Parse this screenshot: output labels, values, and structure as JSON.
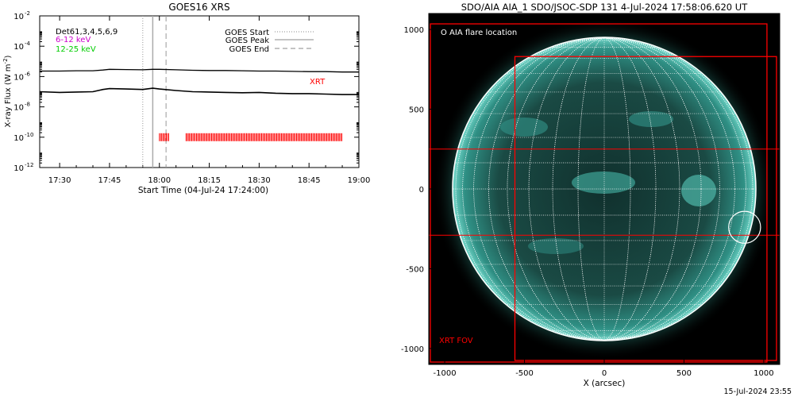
{
  "left_panel": {
    "title": "GOES16 XRS",
    "ylabel": "X-ray Flux (W m",
    "ylabel_sup": "-2",
    "ylabel_end": ")",
    "xlabel": "Start Time (04-Jul-24 17:24:00)",
    "detectors_label": "Det61,3,4,5,6,9",
    "band_low": "6-12 keV",
    "band_high": "12-25 keV",
    "legend": {
      "start": "GOES Start",
      "peak": "GOES Peak",
      "end": "GOES End"
    },
    "xrt_label": "XRT",
    "colors": {
      "band_low": "#cc00cc",
      "band_high": "#00cc00",
      "xrt": "#ff0000"
    }
  },
  "right_panel": {
    "title": "SDO/AIA AIA_1 SDO/JSOC-SDP 131  4-Jul-2024 17:58:06.620 UT",
    "flare_legend": "O AIA flare location",
    "fov_label": "XRT FOV",
    "xlabel": "X (arcsec)",
    "colors": {
      "fov": "#ff0000",
      "disk": "#2a9a8e"
    }
  },
  "footer_timestamp": "15-Jul-2024 23:55",
  "chart_data": [
    {
      "type": "line",
      "title": "GOES16 XRS",
      "xlabel": "Start Time (04-Jul-24 17:24:00)",
      "ylabel": "X-ray Flux (W m^-2)",
      "y_scale": "log",
      "x_ticks": [
        "17:30",
        "17:45",
        "18:00",
        "18:15",
        "18:30",
        "18:45",
        "19:00"
      ],
      "y_tick_exponents": [
        -12,
        -10,
        -8,
        -6,
        -4,
        -2
      ],
      "ylim": [
        1e-12,
        0.01
      ],
      "xlim": [
        "17:24",
        "19:00"
      ],
      "vertical_markers": {
        "goes_start": "17:55",
        "goes_peak": "17:58",
        "goes_end": "18:02"
      },
      "series": [
        {
          "name": "6-12 keV",
          "x": [
            "17:24",
            "17:30",
            "17:35",
            "17:40",
            "17:43",
            "17:45",
            "17:50",
            "17:55",
            "17:58",
            "18:00",
            "18:05",
            "18:10",
            "18:15",
            "18:20",
            "18:25",
            "18:30",
            "18:35",
            "18:40",
            "18:45",
            "18:50",
            "18:55",
            "19:00"
          ],
          "y": [
            2.3e-06,
            2.3e-06,
            2.4e-06,
            2.4e-06,
            2.7e-06,
            3e-06,
            2.9e-06,
            2.8e-06,
            3e-06,
            3e-06,
            2.8e-06,
            2.6e-06,
            2.5e-06,
            2.5e-06,
            2.4e-06,
            2.3e-06,
            2.3e-06,
            2.2e-06,
            2.1e-06,
            2.1e-06,
            2e-06,
            2e-06
          ]
        },
        {
          "name": "12-25 keV",
          "x": [
            "17:24",
            "17:30",
            "17:35",
            "17:40",
            "17:43",
            "17:45",
            "17:50",
            "17:55",
            "17:58",
            "18:00",
            "18:05",
            "18:10",
            "18:15",
            "18:20",
            "18:25",
            "18:30",
            "18:35",
            "18:40",
            "18:45",
            "18:50",
            "18:55",
            "19:00"
          ],
          "y": [
            1e-07,
            9e-08,
            9.5e-08,
            1e-07,
            1.4e-07,
            1.6e-07,
            1.5e-07,
            1.4e-07,
            1.7e-07,
            1.5e-07,
            1.2e-07,
            1e-07,
            9.5e-08,
            9e-08,
            8.5e-08,
            9e-08,
            8e-08,
            7.5e-08,
            7.5e-08,
            7e-08,
            6.5e-08,
            6.5e-08
          ]
        }
      ],
      "xrt_observations": {
        "level": 1e-10,
        "segments": [
          [
            "18:00",
            "18:03"
          ],
          [
            "18:08",
            "18:55"
          ]
        ]
      }
    },
    {
      "type": "image",
      "title": "SDO/AIA AIA_1 SDO/JSOC-SDP 131  4-Jul-2024 17:58:06.620 UT",
      "xlabel": "X (arcsec)",
      "x_ticks": [
        -1000,
        -500,
        0,
        500,
        1000
      ],
      "y_ticks": [
        1000,
        500,
        0,
        -500,
        -1000
      ],
      "xlim": [
        -1100,
        1100
      ],
      "ylim": [
        -1100,
        1100
      ],
      "solar_radius_arcsec": 945,
      "flare_location": {
        "x": 880,
        "y": -240,
        "radius": 100
      },
      "xrt_fov": [
        {
          "x0": -1090,
          "x1": 1020,
          "y0": -1085,
          "y1": 1035
        },
        {
          "x0": -560,
          "x1": 1080,
          "y0": -1075,
          "y1": 830
        }
      ],
      "fov_lines_y": [
        250,
        -290
      ]
    }
  ]
}
